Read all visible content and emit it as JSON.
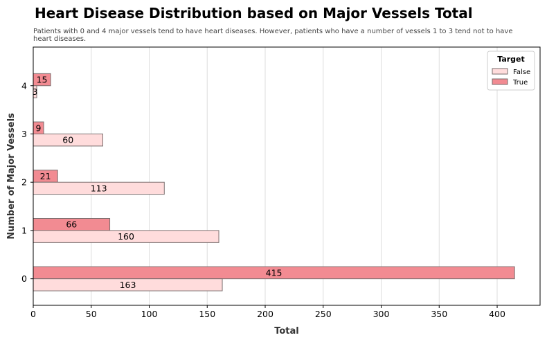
{
  "chart_data": {
    "type": "bar",
    "orientation": "horizontal",
    "title": "Heart Disease Distribution based on Major Vessels Total",
    "subtitle": "Patients with 0 and 4 major vessels tend to have heart diseases. However, patients who have a number of vessels 1 to 3 tend not to have heart diseases.",
    "xlabel": "Total",
    "ylabel": "Number of Major Vessels",
    "categories": [
      "0",
      "1",
      "2",
      "3",
      "4"
    ],
    "series": [
      {
        "name": "False",
        "values": [
          163,
          160,
          113,
          60,
          3
        ],
        "color": "#FFDCDC"
      },
      {
        "name": "True",
        "values": [
          415,
          66,
          21,
          9,
          15
        ],
        "color": "#F28B92"
      }
    ],
    "xlim": [
      0,
      437
    ],
    "xticks": [
      0,
      50,
      100,
      150,
      200,
      250,
      300,
      350,
      400
    ],
    "grid": "vertical",
    "legend": {
      "title": "Target",
      "placement": "top-right"
    },
    "bar_edge_color": "#7a6e6e"
  }
}
